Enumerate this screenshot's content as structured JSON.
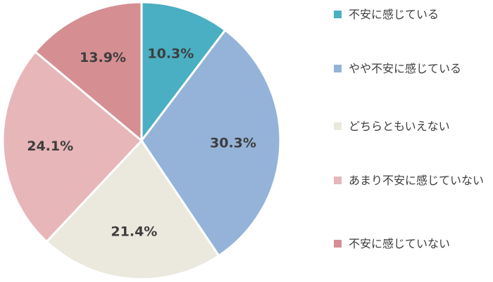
{
  "chart_data": {
    "type": "pie",
    "title": "",
    "start_angle_deg": 0,
    "direction": "clockwise",
    "slices": [
      {
        "label": "不安に感じている",
        "value": 10.3,
        "value_label": "10.3%",
        "color": "#4aafc2"
      },
      {
        "label": "やや不安に感じている",
        "value": 30.3,
        "value_label": "30.3%",
        "color": "#95b3d9"
      },
      {
        "label": "どちらともいえない",
        "value": 21.4,
        "value_label": "21.4%",
        "color": "#ebe9de"
      },
      {
        "label": "あまり不安に感じていない",
        "value": 24.1,
        "value_label": "24.1%",
        "color": "#e7b6b9"
      },
      {
        "label": "不安に感じていない",
        "value": 13.9,
        "value_label": "13.9%",
        "color": "#d58f93"
      }
    ],
    "legend_position": "right"
  },
  "legend": {
    "items": [
      {
        "label": "不安に感じている",
        "color": "#4aafc2"
      },
      {
        "label": "やや不安に感じている",
        "color": "#95b3d9"
      },
      {
        "label": "どちらともいえない",
        "color": "#ebe9de"
      },
      {
        "label": "あまり不安に感じていない",
        "color": "#e7b6b9"
      },
      {
        "label": "不安に感じていない",
        "color": "#d58f93"
      }
    ]
  }
}
